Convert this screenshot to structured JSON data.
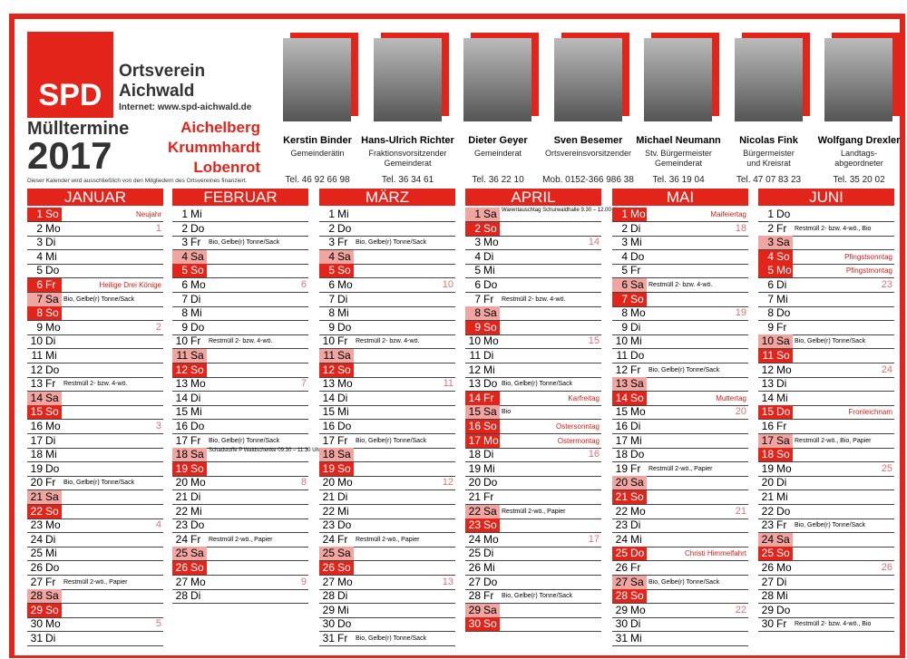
{
  "header": {
    "logo": "SPD",
    "org1": "Ortsverein",
    "org2": "Aichwald",
    "internet": "Internet: www.spd-aichwald.de",
    "title": "Mülltermine",
    "year": "2017",
    "places": [
      "Aichelberg",
      "Krummhardt",
      "Lobenrot"
    ],
    "disclaimer": "Dieser Kalender wird ausschließlich von den Mitgliedern des Ortsvereines finanziert."
  },
  "people": [
    {
      "name": "Kerstin Binder",
      "roles": [
        "Gemeinderätin"
      ],
      "tel": "Tel. 46 92 66 98"
    },
    {
      "name": "Hans-Ulrich Richter",
      "roles": [
        "Fraktionsvorsitzender",
        "Gemeinderat"
      ],
      "tel": "Tel. 36 34 61"
    },
    {
      "name": "Dieter Geyer",
      "roles": [
        "Gemeinderat"
      ],
      "tel": "Tel. 36 22 10"
    },
    {
      "name": "Sven Besemer",
      "roles": [
        "Ortsvereinsvorsitzender"
      ],
      "tel": "Mob. 0152-366 986 38"
    },
    {
      "name": "Michael Neumann",
      "roles": [
        "Stv. Bürgermeister",
        "Gemeinderat"
      ],
      "tel": "Tel. 36 19 04"
    },
    {
      "name": "Nicolas Fink",
      "roles": [
        "Bürgermeister",
        "und Kreisrat"
      ],
      "tel": "Tel. 47 07 83 23"
    },
    {
      "name": "Wolfgang Drexler",
      "roles": [
        "Landtags-",
        "abgeordneter"
      ],
      "tel": "Tel. 35 20 02"
    }
  ],
  "months": [
    {
      "name": "JANUAR",
      "days": [
        {
          "d": 1,
          "w": "So",
          "h": "Neujahr"
        },
        {
          "d": 2,
          "w": "Mo",
          "kw": 1
        },
        {
          "d": 3,
          "w": "Di"
        },
        {
          "d": 4,
          "w": "Mi"
        },
        {
          "d": 5,
          "w": "Do"
        },
        {
          "d": 6,
          "w": "Fr",
          "h": "Heilige Drei Könige"
        },
        {
          "d": 7,
          "w": "Sa",
          "n": "Bio, Gelbe(r) Tonne/Sack"
        },
        {
          "d": 8,
          "w": "So"
        },
        {
          "d": 9,
          "w": "Mo",
          "kw": 2
        },
        {
          "d": 10,
          "w": "Di"
        },
        {
          "d": 11,
          "w": "Mi"
        },
        {
          "d": 12,
          "w": "Do"
        },
        {
          "d": 13,
          "w": "Fr",
          "n": "Restmüll 2- bzw. 4-wö."
        },
        {
          "d": 14,
          "w": "Sa"
        },
        {
          "d": 15,
          "w": "So"
        },
        {
          "d": 16,
          "w": "Mo",
          "kw": 3
        },
        {
          "d": 17,
          "w": "Di"
        },
        {
          "d": 18,
          "w": "Mi"
        },
        {
          "d": 19,
          "w": "Do"
        },
        {
          "d": 20,
          "w": "Fr",
          "n": "Bio, Gelbe(r) Tonne/Sack"
        },
        {
          "d": 21,
          "w": "Sa"
        },
        {
          "d": 22,
          "w": "So"
        },
        {
          "d": 23,
          "w": "Mo",
          "kw": 4
        },
        {
          "d": 24,
          "w": "Di"
        },
        {
          "d": 25,
          "w": "Mi"
        },
        {
          "d": 26,
          "w": "Do"
        },
        {
          "d": 27,
          "w": "Fr",
          "n": "Restmüll 2-wö., Papier"
        },
        {
          "d": 28,
          "w": "Sa"
        },
        {
          "d": 29,
          "w": "So"
        },
        {
          "d": 30,
          "w": "Mo",
          "kw": 5
        },
        {
          "d": 31,
          "w": "Di"
        }
      ]
    },
    {
      "name": "FEBRUAR",
      "days": [
        {
          "d": 1,
          "w": "Mi"
        },
        {
          "d": 2,
          "w": "Do"
        },
        {
          "d": 3,
          "w": "Fr",
          "n": "Bio, Gelbe(r) Tonne/Sack"
        },
        {
          "d": 4,
          "w": "Sa"
        },
        {
          "d": 5,
          "w": "So"
        },
        {
          "d": 6,
          "w": "Mo",
          "kw": 6
        },
        {
          "d": 7,
          "w": "Di"
        },
        {
          "d": 8,
          "w": "Mi"
        },
        {
          "d": 9,
          "w": "Do"
        },
        {
          "d": 10,
          "w": "Fr",
          "n": "Restmüll 2- bzw. 4-wö."
        },
        {
          "d": 11,
          "w": "Sa"
        },
        {
          "d": 12,
          "w": "So"
        },
        {
          "d": 13,
          "w": "Mo",
          "kw": 7
        },
        {
          "d": 14,
          "w": "Di"
        },
        {
          "d": 15,
          "w": "Mi"
        },
        {
          "d": 16,
          "w": "Do"
        },
        {
          "d": 17,
          "w": "Fr",
          "n": "Bio, Gelbe(r) Tonne/Sack"
        },
        {
          "d": 18,
          "w": "Sa",
          "n": "Schadstoffe P Waldschenke 09.30 – 11.30 Uhr"
        },
        {
          "d": 19,
          "w": "So"
        },
        {
          "d": 20,
          "w": "Mo",
          "kw": 8
        },
        {
          "d": 21,
          "w": "Di"
        },
        {
          "d": 22,
          "w": "Mi"
        },
        {
          "d": 23,
          "w": "Do"
        },
        {
          "d": 24,
          "w": "Fr",
          "n": "Restmüll 2-wö., Papier"
        },
        {
          "d": 25,
          "w": "Sa"
        },
        {
          "d": 26,
          "w": "So"
        },
        {
          "d": 27,
          "w": "Mo",
          "kw": 9
        },
        {
          "d": 28,
          "w": "Di"
        }
      ]
    },
    {
      "name": "MÄRZ",
      "days": [
        {
          "d": 1,
          "w": "Mi"
        },
        {
          "d": 2,
          "w": "Do"
        },
        {
          "d": 3,
          "w": "Fr",
          "n": "Bio, Gelbe(r) Tonne/Sack"
        },
        {
          "d": 4,
          "w": "Sa"
        },
        {
          "d": 5,
          "w": "So"
        },
        {
          "d": 6,
          "w": "Mo",
          "kw": 10
        },
        {
          "d": 7,
          "w": "Di"
        },
        {
          "d": 8,
          "w": "Mi"
        },
        {
          "d": 9,
          "w": "Do"
        },
        {
          "d": 10,
          "w": "Fr",
          "n": "Restmüll 2- bzw. 4-wö."
        },
        {
          "d": 11,
          "w": "Sa"
        },
        {
          "d": 12,
          "w": "So"
        },
        {
          "d": 13,
          "w": "Mo",
          "kw": 11
        },
        {
          "d": 14,
          "w": "Di"
        },
        {
          "d": 15,
          "w": "Mi"
        },
        {
          "d": 16,
          "w": "Do"
        },
        {
          "d": 17,
          "w": "Fr",
          "n": "Bio, Gelbe(r) Tonne/Sack"
        },
        {
          "d": 18,
          "w": "Sa"
        },
        {
          "d": 19,
          "w": "So"
        },
        {
          "d": 20,
          "w": "Mo",
          "kw": 12
        },
        {
          "d": 21,
          "w": "Di"
        },
        {
          "d": 22,
          "w": "Mi"
        },
        {
          "d": 23,
          "w": "Do"
        },
        {
          "d": 24,
          "w": "Fr",
          "n": "Restmüll 2-wö., Papier"
        },
        {
          "d": 25,
          "w": "Sa"
        },
        {
          "d": 26,
          "w": "So"
        },
        {
          "d": 27,
          "w": "Mo",
          "kw": 13
        },
        {
          "d": 28,
          "w": "Di"
        },
        {
          "d": 29,
          "w": "Mi"
        },
        {
          "d": 30,
          "w": "Do"
        },
        {
          "d": 31,
          "w": "Fr",
          "n": "Bio, Gelbe(r) Tonne/Sack"
        }
      ]
    },
    {
      "name": "APRIL",
      "days": [
        {
          "d": 1,
          "w": "Sa",
          "n": "Warentauschtag Schurwaldhalle 9.30 – 12.00 Uhr"
        },
        {
          "d": 2,
          "w": "So"
        },
        {
          "d": 3,
          "w": "Mo",
          "kw": 14
        },
        {
          "d": 4,
          "w": "Di"
        },
        {
          "d": 5,
          "w": "Mi"
        },
        {
          "d": 6,
          "w": "Do"
        },
        {
          "d": 7,
          "w": "Fr",
          "n": "Restmüll 2- bzw. 4-wö."
        },
        {
          "d": 8,
          "w": "Sa"
        },
        {
          "d": 9,
          "w": "So"
        },
        {
          "d": 10,
          "w": "Mo",
          "kw": 15
        },
        {
          "d": 11,
          "w": "Di"
        },
        {
          "d": 12,
          "w": "Mi"
        },
        {
          "d": 13,
          "w": "Do",
          "n": "Bio, Gelbe(r) Tonne/Sack"
        },
        {
          "d": 14,
          "w": "Fr",
          "h": "Karfreitag"
        },
        {
          "d": 15,
          "w": "Sa",
          "n": "Bio"
        },
        {
          "d": 16,
          "w": "So",
          "h": "Ostersonntag"
        },
        {
          "d": 17,
          "w": "Mo",
          "h": "Ostermontag"
        },
        {
          "d": 18,
          "w": "Di",
          "kw": 16
        },
        {
          "d": 19,
          "w": "Mi"
        },
        {
          "d": 20,
          "w": "Do"
        },
        {
          "d": 21,
          "w": "Fr"
        },
        {
          "d": 22,
          "w": "Sa",
          "n": "Restmüll 2-wö., Papier"
        },
        {
          "d": 23,
          "w": "So"
        },
        {
          "d": 24,
          "w": "Mo",
          "kw": 17
        },
        {
          "d": 25,
          "w": "Di"
        },
        {
          "d": 26,
          "w": "Mi"
        },
        {
          "d": 27,
          "w": "Do"
        },
        {
          "d": 28,
          "w": "Fr",
          "n": "Bio, Gelbe(r) Tonne/Sack"
        },
        {
          "d": 29,
          "w": "Sa"
        },
        {
          "d": 30,
          "w": "So"
        }
      ]
    },
    {
      "name": "MAI",
      "days": [
        {
          "d": 1,
          "w": "Mo",
          "h": "Maifeiertag"
        },
        {
          "d": 2,
          "w": "Di",
          "kw": 18
        },
        {
          "d": 3,
          "w": "Mi"
        },
        {
          "d": 4,
          "w": "Do"
        },
        {
          "d": 5,
          "w": "Fr"
        },
        {
          "d": 6,
          "w": "Sa",
          "n": "Restmüll 2- bzw. 4-wö."
        },
        {
          "d": 7,
          "w": "So"
        },
        {
          "d": 8,
          "w": "Mo",
          "kw": 19
        },
        {
          "d": 9,
          "w": "Di"
        },
        {
          "d": 10,
          "w": "Mi"
        },
        {
          "d": 11,
          "w": "Do"
        },
        {
          "d": 12,
          "w": "Fr",
          "n": "Bio, Gelbe(r) Tonne/Sack"
        },
        {
          "d": 13,
          "w": "Sa"
        },
        {
          "d": 14,
          "w": "So",
          "h": "Muttertag"
        },
        {
          "d": 15,
          "w": "Mo",
          "kw": 20
        },
        {
          "d": 16,
          "w": "Di"
        },
        {
          "d": 17,
          "w": "Mi"
        },
        {
          "d": 18,
          "w": "Do"
        },
        {
          "d": 19,
          "w": "Fr",
          "n": "Restmüll 2-wö., Papier"
        },
        {
          "d": 20,
          "w": "Sa"
        },
        {
          "d": 21,
          "w": "So"
        },
        {
          "d": 22,
          "w": "Mo",
          "kw": 21
        },
        {
          "d": 23,
          "w": "Di"
        },
        {
          "d": 24,
          "w": "Mi"
        },
        {
          "d": 25,
          "w": "Do",
          "h": "Christi Himmelfahrt"
        },
        {
          "d": 26,
          "w": "Fr"
        },
        {
          "d": 27,
          "w": "Sa",
          "n": "Bio, Gelbe(r) Tonne/Sack"
        },
        {
          "d": 28,
          "w": "So"
        },
        {
          "d": 29,
          "w": "Mo",
          "kw": 22
        },
        {
          "d": 30,
          "w": "Di"
        },
        {
          "d": 31,
          "w": "Mi"
        }
      ]
    },
    {
      "name": "JUNI",
      "days": [
        {
          "d": 1,
          "w": "Do"
        },
        {
          "d": 2,
          "w": "Fr",
          "n": "Restmüll 2- bzw. 4-wö., Bio"
        },
        {
          "d": 3,
          "w": "Sa"
        },
        {
          "d": 4,
          "w": "So",
          "h": "Pfingstsonntag"
        },
        {
          "d": 5,
          "w": "Mo",
          "h": "Pfingstmontag"
        },
        {
          "d": 6,
          "w": "Di",
          "kw": 23
        },
        {
          "d": 7,
          "w": "Mi"
        },
        {
          "d": 8,
          "w": "Do"
        },
        {
          "d": 9,
          "w": "Fr"
        },
        {
          "d": 10,
          "w": "Sa",
          "n": "Bio, Gelbe(r) Tonne/Sack"
        },
        {
          "d": 11,
          "w": "So"
        },
        {
          "d": 12,
          "w": "Mo",
          "kw": 24
        },
        {
          "d": 13,
          "w": "Di"
        },
        {
          "d": 14,
          "w": "Mi"
        },
        {
          "d": 15,
          "w": "Do",
          "h": "Fronleichnam"
        },
        {
          "d": 16,
          "w": "Fr"
        },
        {
          "d": 17,
          "w": "Sa",
          "n": "Restmüll 2-wö., Bio, Papier"
        },
        {
          "d": 18,
          "w": "So"
        },
        {
          "d": 19,
          "w": "Mo",
          "kw": 25
        },
        {
          "d": 20,
          "w": "Di"
        },
        {
          "d": 21,
          "w": "Mi"
        },
        {
          "d": 22,
          "w": "Do"
        },
        {
          "d": 23,
          "w": "Fr",
          "n": "Bio, Gelbe(r) Tonne/Sack"
        },
        {
          "d": 24,
          "w": "Sa"
        },
        {
          "d": 25,
          "w": "So"
        },
        {
          "d": 26,
          "w": "Mo",
          "kw": 26
        },
        {
          "d": 27,
          "w": "Di"
        },
        {
          "d": 28,
          "w": "Mi"
        },
        {
          "d": 29,
          "w": "Do"
        },
        {
          "d": 30,
          "w": "Fr",
          "n": "Restmüll 2- bzw. 4-wö., Bio"
        }
      ]
    }
  ]
}
